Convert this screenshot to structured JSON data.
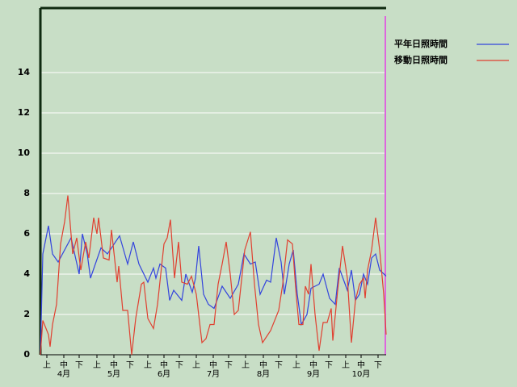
{
  "chart_data": {
    "type": "line",
    "xlim": [
      0,
      214
    ],
    "ylim": [
      0,
      17.2
    ],
    "yticks": [
      0,
      2,
      4,
      6,
      8,
      10,
      12,
      14
    ],
    "xticks": [
      {
        "value": 4,
        "label": "上"
      },
      {
        "value": 14.5,
        "label": "中"
      },
      {
        "value": 24,
        "label": "下"
      },
      {
        "value": 35,
        "label": "上"
      },
      {
        "value": 45.5,
        "label": "中"
      },
      {
        "value": 55.5,
        "label": "下"
      },
      {
        "value": 66.5,
        "label": "上"
      },
      {
        "value": 76.5,
        "label": "中"
      },
      {
        "value": 86,
        "label": "下"
      },
      {
        "value": 96.5,
        "label": "上"
      },
      {
        "value": 107,
        "label": "中"
      },
      {
        "value": 116.5,
        "label": "下"
      },
      {
        "value": 127,
        "label": "上"
      },
      {
        "value": 138,
        "label": "中"
      },
      {
        "value": 147.5,
        "label": "下"
      },
      {
        "value": 158.5,
        "label": "上"
      },
      {
        "value": 169,
        "label": "中"
      },
      {
        "value": 178.5,
        "label": "下"
      },
      {
        "value": 189,
        "label": "上"
      },
      {
        "value": 198.5,
        "label": "中"
      },
      {
        "value": 209,
        "label": "下"
      }
    ],
    "months": [
      "4月",
      "5月",
      "6月",
      "7月",
      "8月",
      "9月",
      "10月"
    ],
    "grid": true,
    "series": [
      {
        "name": "平年日照時間",
        "color": "#3344dd",
        "x": [
          0,
          1.5,
          5,
          7.5,
          11,
          19,
          24,
          26,
          29,
          31,
          34,
          37.5,
          41.5,
          49,
          54,
          57.5,
          61,
          66.5,
          70,
          71.5,
          74,
          77.5,
          80,
          82.5,
          87.5,
          90,
          94,
          96,
          98,
          101,
          104,
          107.5,
          112.5,
          117.5,
          122.5,
          126,
          130,
          133,
          136,
          140,
          142.5,
          146,
          149,
          151,
          154,
          156.5,
          159,
          161.5,
          165,
          167.5,
          172.5,
          175,
          179,
          182.5,
          185,
          190,
          192.5,
          195,
          197.5,
          200,
          202.5,
          205,
          207.5,
          210,
          214
        ],
        "values": [
          0,
          5,
          6.4,
          5,
          4.6,
          5.8,
          4,
          6,
          5,
          3.8,
          4.5,
          5.3,
          5,
          5.9,
          4.5,
          5.6,
          4.5,
          3.6,
          4.3,
          3.8,
          4.5,
          4.3,
          2.7,
          3.2,
          2.7,
          4,
          3.1,
          3.8,
          5.4,
          3,
          2.5,
          2.3,
          3.4,
          2.8,
          3.5,
          5,
          4.5,
          4.6,
          3,
          3.7,
          3.6,
          5.8,
          4.6,
          3,
          4.5,
          5.2,
          3,
          1.5,
          2,
          3.3,
          3.5,
          4,
          2.8,
          2.5,
          4.3,
          3.2,
          4.2,
          2.7,
          3,
          4,
          3.5,
          4.8,
          5,
          4.2,
          3.9
        ]
      },
      {
        "name": "移動日照時間",
        "color": "#e04030",
        "x": [
          0,
          1.5,
          5,
          6,
          7.5,
          10,
          12.5,
          15,
          17,
          20,
          22.5,
          25,
          28,
          30,
          33,
          35,
          36,
          39,
          42.5,
          44,
          47.5,
          48.5,
          51,
          54,
          56.5,
          59,
          62.5,
          64,
          66.5,
          70,
          72.5,
          76.5,
          78.5,
          80.5,
          83,
          85.5,
          87.5,
          91,
          93.5,
          96.5,
          100,
          102.5,
          105,
          107.5,
          110,
          112.5,
          115,
          117.5,
          120,
          122.5,
          126.5,
          130,
          132.5,
          135,
          137.5,
          140,
          142.5,
          147.5,
          150,
          153,
          156,
          158,
          160,
          162.5,
          164,
          166,
          167.5,
          170,
          172.5,
          175,
          177.5,
          180,
          181,
          184,
          187,
          190,
          192.5,
          195,
          197.5,
          200,
          201,
          202.5,
          205,
          207.5,
          210,
          212.5,
          214
        ],
        "values": [
          0,
          1.7,
          1,
          0.4,
          1.5,
          2.5,
          5.5,
          6.6,
          7.9,
          5,
          5.8,
          4.2,
          5.6,
          4.8,
          6.8,
          6,
          6.8,
          4.8,
          4.7,
          6.2,
          3.6,
          4.4,
          2.2,
          2.2,
          0,
          1.8,
          3.5,
          3.6,
          1.8,
          1.3,
          2.5,
          5.5,
          5.8,
          6.7,
          3.8,
          5.6,
          3.6,
          3.5,
          3.9,
          3,
          0.6,
          0.8,
          1.5,
          1.5,
          3.5,
          4.5,
          5.6,
          4,
          2,
          2.2,
          5.2,
          6.1,
          3.5,
          1.5,
          0.6,
          0.9,
          1.2,
          2.2,
          3.5,
          5.7,
          5.5,
          3.3,
          1.5,
          1.5,
          3.4,
          3,
          4.5,
          2,
          0.2,
          1.6,
          1.6,
          2.3,
          0.7,
          3.2,
          5.4,
          3.8,
          0.6,
          2.7,
          3.5,
          3.8,
          2.8,
          4.2,
          5.2,
          6.8,
          5.2,
          3,
          1
        ]
      }
    ]
  }
}
